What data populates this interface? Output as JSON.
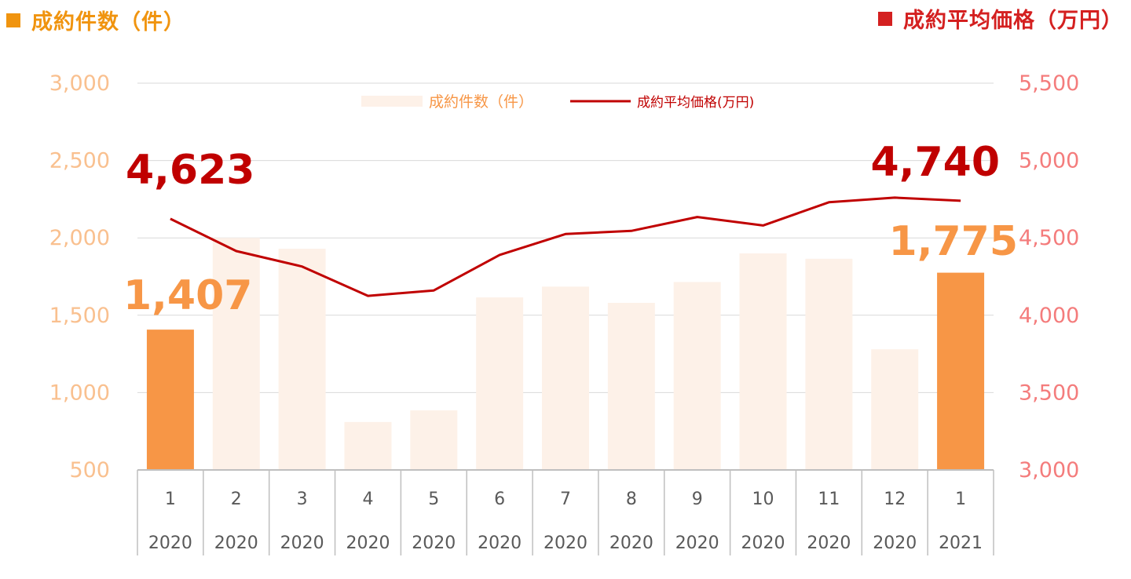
{
  "header": {
    "left_title": "成約件数（件）",
    "right_title": "成約平均価格（万円）"
  },
  "colors": {
    "bar_faded": "#fdf1e8",
    "bar_highlight": "#f79646",
    "line": "#c00000",
    "left_axis_text": "#f9c08f",
    "right_axis_text": "#f47c7c",
    "header_left": "#f0940f",
    "header_right": "#d42020",
    "label_price": "#c00000",
    "label_count": "#f79646",
    "grid": "#d9d9d9",
    "category_text": "#595959",
    "table_line": "#bfbfbf"
  },
  "chart_data": {
    "type": "bar",
    "categories": [
      "1",
      "2",
      "3",
      "4",
      "5",
      "6",
      "7",
      "8",
      "9",
      "10",
      "11",
      "12",
      "1"
    ],
    "years": [
      "2020",
      "2020",
      "2020",
      "2020",
      "2020",
      "2020",
      "2020",
      "2020",
      "2020",
      "2020",
      "2020",
      "2020",
      "2021"
    ],
    "series": [
      {
        "name": "成約件数（件）",
        "type": "bar",
        "axis": "left",
        "values": [
          1407,
          2000,
          1930,
          810,
          885,
          1615,
          1685,
          1580,
          1715,
          1900,
          1865,
          1280,
          1775
        ],
        "highlight_indices": [
          0,
          12
        ]
      },
      {
        "name": "成約平均価格(万円)",
        "type": "line",
        "axis": "right",
        "values": [
          4623,
          4415,
          4315,
          4125,
          4160,
          4390,
          4525,
          4545,
          4635,
          4580,
          4730,
          4760,
          4740
        ]
      }
    ],
    "y_left": {
      "min": 500,
      "max": 3000,
      "ticks": [
        "3,000",
        "2,500",
        "2,000",
        "1,500",
        "1,000",
        "500"
      ],
      "tick_values": [
        3000,
        2500,
        2000,
        1500,
        1000,
        500
      ]
    },
    "y_right": {
      "min": 3000,
      "max": 5500,
      "ticks": [
        "5,500",
        "5,000",
        "4,500",
        "4,000",
        "3,500",
        "3,000"
      ],
      "tick_values": [
        5500,
        5000,
        4500,
        4000,
        3500,
        3000
      ]
    },
    "annotations": {
      "price_first": "4,623",
      "price_last": "4,740",
      "count_first": "1,407",
      "count_last": "1,775"
    },
    "legend": {
      "position": "top-center",
      "bar_label": "成約件数（件）",
      "line_label": "成約平均価格(万円)"
    },
    "grid": true
  }
}
